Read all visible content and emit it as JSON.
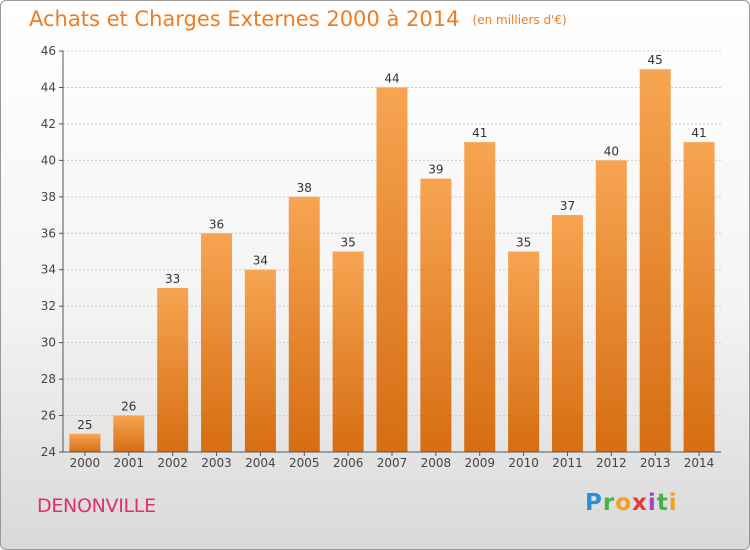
{
  "header": {
    "title": "Achats et Charges Externes 2000 à 2014",
    "unit": "(en milliers d'€)"
  },
  "footer": {
    "commune": "DENONVILLE",
    "logo_text": "Proxiti"
  },
  "colors": {
    "title": "#f07c22",
    "commune": "#e0306b",
    "bar_top": "#f7a552",
    "bar_bottom": "#d66d12",
    "grid": "#cccccc",
    "axis": "#555555"
  },
  "chart_data": {
    "type": "bar",
    "title": "Achats et Charges Externes 2000 à 2014",
    "subtitle": "(en milliers d'€)",
    "categories": [
      "2000",
      "2001",
      "2002",
      "2003",
      "2004",
      "2005",
      "2006",
      "2007",
      "2008",
      "2009",
      "2010",
      "2011",
      "2012",
      "2013",
      "2014"
    ],
    "values": [
      25,
      26,
      33,
      36,
      34,
      38,
      35,
      44,
      39,
      41,
      35,
      37,
      40,
      45,
      41
    ],
    "data_labels": [
      "25",
      "26",
      "33",
      "36",
      "34",
      "38",
      "35",
      "44",
      "39",
      "41",
      "35",
      "37",
      "40",
      "45",
      "41"
    ],
    "ylim": [
      24,
      46
    ],
    "yticks": [
      24,
      26,
      28,
      30,
      32,
      34,
      36,
      38,
      40,
      42,
      44,
      46
    ],
    "grid": true,
    "legend": "none"
  }
}
